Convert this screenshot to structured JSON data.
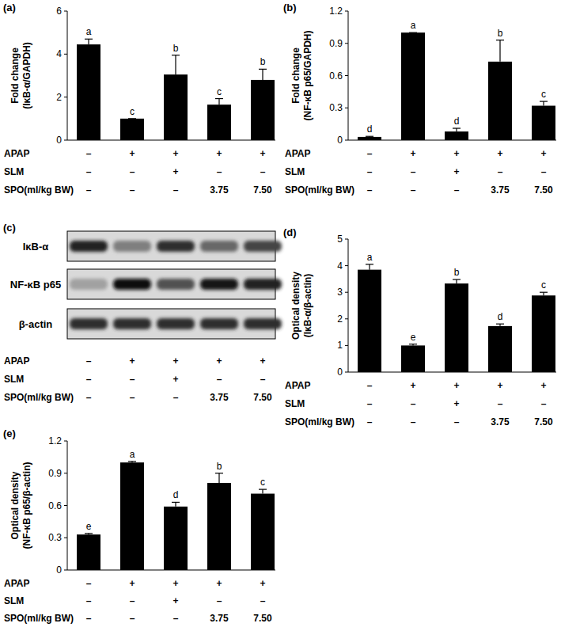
{
  "chart_data": [
    {
      "type": "bar",
      "panel": "(a)",
      "y_label": [
        "Fold change",
        "(IκB-α/GAPDH)"
      ],
      "color": "#000000",
      "values": [
        4.45,
        1.0,
        3.05,
        1.65,
        2.8
      ],
      "errors": [
        0.25,
        0,
        0.9,
        0.28,
        0.5
      ],
      "annotations": [
        "a",
        "c",
        "b",
        "c",
        "b"
      ],
      "ylim": [
        0,
        6
      ],
      "yticks": [
        0,
        2,
        4,
        6
      ],
      "treatments": [
        {
          "label": "APAP",
          "cells": [
            "–",
            "+",
            "+",
            "+",
            "+"
          ]
        },
        {
          "label": "SLM",
          "cells": [
            "–",
            "–",
            "+",
            "–",
            "–"
          ]
        },
        {
          "label": "SPO(ml/kg BW)",
          "cells": [
            "–",
            "–",
            "–",
            "3.75",
            "7.50"
          ]
        }
      ]
    },
    {
      "type": "bar",
      "panel": "(b)",
      "y_label": [
        "Fold change",
        "(NF-κB p65/GAPDH)"
      ],
      "color": "#000000",
      "values": [
        0.03,
        1.0,
        0.08,
        0.73,
        0.32
      ],
      "errors": [
        0.005,
        0,
        0.03,
        0.2,
        0.04
      ],
      "annotations": [
        "d",
        "a",
        "d",
        "b",
        "c"
      ],
      "ylim": [
        0,
        1.2
      ],
      "yticks": [
        0,
        0.3,
        0.6,
        0.9,
        1.2
      ],
      "treatments": [
        {
          "label": "APAP",
          "cells": [
            "–",
            "+",
            "+",
            "+",
            "+"
          ]
        },
        {
          "label": "SLM",
          "cells": [
            "–",
            "–",
            "+",
            "–",
            "–"
          ]
        },
        {
          "label": "SPO(ml/kg BW)",
          "cells": [
            "–",
            "–",
            "–",
            "3.75",
            "7.50"
          ]
        }
      ]
    },
    {
      "type": "bar",
      "panel": "(d)",
      "y_label": [
        "Optical density",
        "(IκB-α/β-actin)"
      ],
      "color": "#000000",
      "values": [
        3.85,
        1.0,
        3.33,
        1.73,
        2.88
      ],
      "errors": [
        0.2,
        0.05,
        0.15,
        0.08,
        0.12
      ],
      "annotations": [
        "a",
        "e",
        "b",
        "d",
        "c"
      ],
      "ylim": [
        0,
        5
      ],
      "yticks": [
        0,
        1,
        2,
        3,
        4,
        5
      ],
      "treatments": [
        {
          "label": "APAP",
          "cells": [
            "–",
            "+",
            "+",
            "+",
            "+"
          ]
        },
        {
          "label": "SLM",
          "cells": [
            "–",
            "–",
            "+",
            "–",
            "–"
          ]
        },
        {
          "label": "SPO(ml/kg BW)",
          "cells": [
            "–",
            "–",
            "–",
            "3.75",
            "7.50"
          ]
        }
      ]
    },
    {
      "type": "bar",
      "panel": "(e)",
      "y_label": [
        "Optical density",
        "(NF-κB p65/β-actin)"
      ],
      "color": "#000000",
      "values": [
        0.33,
        1.0,
        0.59,
        0.81,
        0.71
      ],
      "errors": [
        0.01,
        0.01,
        0.04,
        0.09,
        0.04
      ],
      "annotations": [
        "e",
        "a",
        "d",
        "b",
        "c"
      ],
      "ylim": [
        0,
        1.2
      ],
      "yticks": [
        0,
        0.3,
        0.6,
        0.9,
        1.2
      ],
      "treatments": [
        {
          "label": "APAP",
          "cells": [
            "–",
            "+",
            "+",
            "+",
            "+"
          ]
        },
        {
          "label": "SLM",
          "cells": [
            "–",
            "–",
            "+",
            "–",
            "–"
          ]
        },
        {
          "label": "SPO(ml/kg BW)",
          "cells": [
            "–",
            "–",
            "–",
            "3.75",
            "7.50"
          ]
        }
      ]
    }
  ],
  "blot": {
    "panel": "(c)",
    "rows": [
      {
        "label": "IκB-α",
        "intensity": [
          0.85,
          0.45,
          0.8,
          0.55,
          0.7
        ]
      },
      {
        "label": "NF-κB p65",
        "intensity": [
          0.3,
          0.95,
          0.65,
          0.9,
          0.85
        ]
      },
      {
        "label": "β-actin",
        "intensity": [
          0.8,
          0.8,
          0.8,
          0.8,
          0.8
        ]
      }
    ],
    "treatments": [
      {
        "label": "APAP",
        "cells": [
          "–",
          "+",
          "+",
          "+",
          "+"
        ]
      },
      {
        "label": "SLM",
        "cells": [
          "–",
          "–",
          "+",
          "–",
          "–"
        ]
      },
      {
        "label": "SPO(ml/kg BW)",
        "cells": [
          "–",
          "–",
          "–",
          "3.75",
          "7.50"
        ]
      }
    ]
  }
}
